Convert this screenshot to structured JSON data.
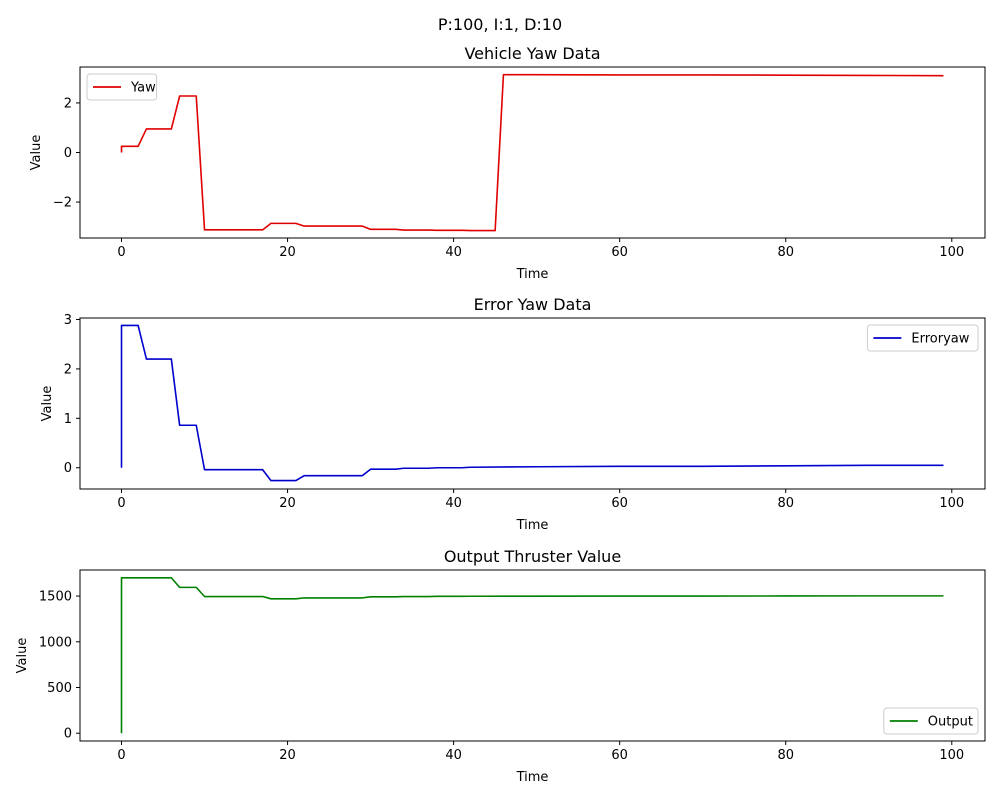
{
  "figure": {
    "suptitle": "P:100, I:1, D:10"
  },
  "chart_data": [
    {
      "type": "line",
      "title": "Vehicle Yaw Data",
      "xlabel": "Time",
      "ylabel": "Value",
      "xlim": [
        -5,
        104
      ],
      "ylim": [
        -3.45,
        3.45
      ],
      "xticks": [
        0,
        20,
        40,
        60,
        80,
        100
      ],
      "yticks": [
        -2,
        0,
        2
      ],
      "legend_position": "upper-left",
      "series": [
        {
          "name": "Yaw",
          "color": "#e00000",
          "x": [
            0,
            0,
            1,
            2,
            3,
            4,
            5,
            6,
            7,
            8,
            9,
            10,
            11,
            12,
            13,
            14,
            15,
            16,
            17,
            18,
            19,
            20,
            21,
            22,
            23,
            24,
            25,
            26,
            27,
            28,
            29,
            30,
            31,
            32,
            33,
            34,
            35,
            36,
            37,
            38,
            39,
            40,
            41,
            42,
            43,
            44,
            45,
            46,
            50,
            60,
            70,
            80,
            90,
            99
          ],
          "y": [
            0.0,
            0.25,
            0.25,
            0.25,
            0.95,
            0.95,
            0.95,
            0.95,
            2.28,
            2.28,
            2.28,
            -3.12,
            -3.12,
            -3.12,
            -3.12,
            -3.12,
            -3.12,
            -3.12,
            -3.12,
            -2.86,
            -2.86,
            -2.86,
            -2.86,
            -2.97,
            -2.97,
            -2.97,
            -2.97,
            -2.97,
            -2.97,
            -2.97,
            -2.97,
            -3.1,
            -3.1,
            -3.1,
            -3.1,
            -3.13,
            -3.13,
            -3.13,
            -3.13,
            -3.14,
            -3.14,
            -3.14,
            -3.14,
            -3.15,
            -3.15,
            -3.15,
            -3.15,
            3.14,
            3.14,
            3.13,
            3.13,
            3.12,
            3.11,
            3.1
          ]
        }
      ]
    },
    {
      "type": "line",
      "title": "Error Yaw Data",
      "xlabel": "Time",
      "ylabel": "Value",
      "xlim": [
        -5,
        104
      ],
      "ylim": [
        -0.43,
        3.03
      ],
      "xticks": [
        0,
        20,
        40,
        60,
        80,
        100
      ],
      "yticks": [
        0,
        1,
        2,
        3
      ],
      "legend_position": "upper-right",
      "series": [
        {
          "name": "Erroryaw",
          "color": "#0000cc",
          "x": [
            0,
            0,
            1,
            2,
            3,
            4,
            5,
            6,
            7,
            8,
            9,
            10,
            11,
            12,
            13,
            14,
            15,
            16,
            17,
            18,
            19,
            20,
            21,
            22,
            23,
            24,
            25,
            26,
            27,
            28,
            29,
            30,
            31,
            32,
            33,
            34,
            35,
            36,
            37,
            38,
            39,
            40,
            41,
            42,
            50,
            60,
            70,
            80,
            90,
            99
          ],
          "y": [
            0.0,
            2.88,
            2.88,
            2.88,
            2.2,
            2.2,
            2.2,
            2.2,
            0.86,
            0.86,
            0.86,
            -0.04,
            -0.04,
            -0.04,
            -0.04,
            -0.04,
            -0.04,
            -0.04,
            -0.04,
            -0.26,
            -0.26,
            -0.26,
            -0.26,
            -0.16,
            -0.16,
            -0.16,
            -0.16,
            -0.16,
            -0.16,
            -0.16,
            -0.16,
            -0.03,
            -0.03,
            -0.03,
            -0.03,
            -0.01,
            -0.01,
            -0.01,
            -0.01,
            0.0,
            0.0,
            0.0,
            0.0,
            0.01,
            0.02,
            0.03,
            0.03,
            0.04,
            0.05,
            0.05
          ]
        }
      ]
    },
    {
      "type": "line",
      "title": "Output Thruster Value",
      "xlabel": "Time",
      "ylabel": "Value",
      "xlim": [
        -5,
        104
      ],
      "ylim": [
        -85,
        1785
      ],
      "xticks": [
        0,
        20,
        40,
        60,
        80,
        100
      ],
      "yticks": [
        0,
        500,
        1000,
        1500
      ],
      "legend_position": "lower-right",
      "series": [
        {
          "name": "Output",
          "color": "#008000",
          "x": [
            0,
            0,
            1,
            2,
            3,
            4,
            5,
            6,
            7,
            8,
            9,
            10,
            11,
            12,
            13,
            14,
            15,
            16,
            17,
            18,
            19,
            20,
            21,
            22,
            23,
            24,
            25,
            26,
            27,
            28,
            29,
            30,
            31,
            32,
            33,
            34,
            35,
            36,
            37,
            38,
            39,
            40,
            41,
            42,
            50,
            60,
            70,
            80,
            90,
            99
          ],
          "y": [
            0,
            1700,
            1700,
            1700,
            1700,
            1700,
            1700,
            1700,
            1595,
            1595,
            1595,
            1495,
            1495,
            1495,
            1495,
            1495,
            1495,
            1495,
            1495,
            1470,
            1470,
            1470,
            1470,
            1480,
            1480,
            1480,
            1480,
            1480,
            1480,
            1480,
            1480,
            1492,
            1492,
            1492,
            1492,
            1495,
            1495,
            1495,
            1495,
            1497,
            1497,
            1497,
            1497,
            1498,
            1499,
            1500,
            1500,
            1501,
            1502,
            1502
          ]
        }
      ]
    }
  ]
}
